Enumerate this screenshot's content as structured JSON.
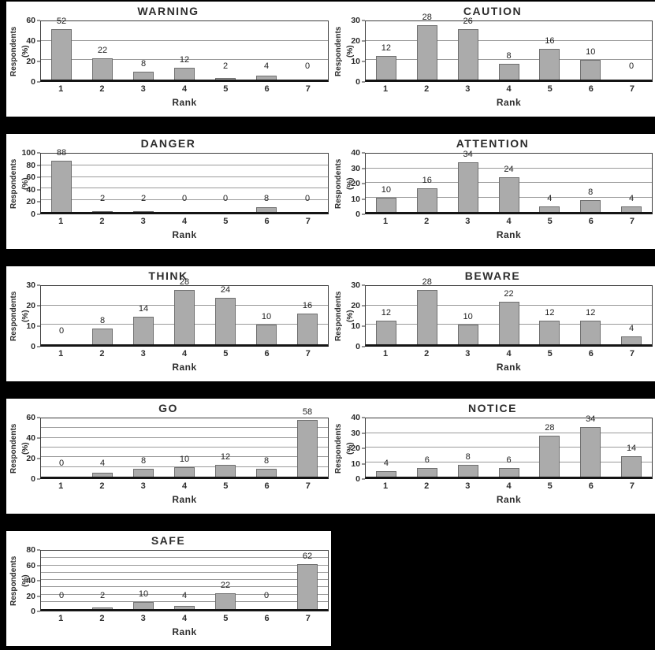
{
  "figure": {
    "description": "Nine bar charts of respondent rankings for signal words",
    "background_color": "#000000",
    "card_color": "#ffffff",
    "bar_color": "#ababab",
    "bar_border_color": "#6f6f6f",
    "gridline_color": "#9a9a9a"
  },
  "shared": {
    "ylabel": "Respondents (%)",
    "xlabel": "Rank",
    "categories": [
      "1",
      "2",
      "3",
      "4",
      "5",
      "6",
      "7"
    ]
  },
  "chart_data": [
    {
      "type": "bar",
      "title": "WARNING",
      "values": [
        52,
        22,
        8,
        12,
        2,
        4,
        0
      ],
      "ylim": [
        0,
        60
      ],
      "yticks": [
        0,
        20,
        40,
        60
      ],
      "grid_step": 20
    },
    {
      "type": "bar",
      "title": "CAUTION",
      "values": [
        12,
        28,
        26,
        8,
        16,
        10,
        0
      ],
      "ylim": [
        0,
        30
      ],
      "yticks": [
        0,
        10,
        20,
        30
      ],
      "grid_step": 10
    },
    {
      "type": "bar",
      "title": "DANGER",
      "values": [
        88,
        2,
        2,
        0,
        0,
        8,
        0
      ],
      "ylim": [
        0,
        100
      ],
      "yticks": [
        0,
        20,
        40,
        60,
        80,
        100
      ],
      "grid_step": 20
    },
    {
      "type": "bar",
      "title": "ATTENTION",
      "values": [
        10,
        16,
        34,
        24,
        4,
        8,
        4
      ],
      "ylim": [
        0,
        40
      ],
      "yticks": [
        0,
        10,
        20,
        30,
        40
      ],
      "grid_step": 10
    },
    {
      "type": "bar",
      "title": "THINK",
      "values": [
        0,
        8,
        14,
        28,
        24,
        10,
        16
      ],
      "ylim": [
        0,
        30
      ],
      "yticks": [
        0,
        10,
        20,
        30
      ],
      "grid_step": 10
    },
    {
      "type": "bar",
      "title": "BEWARE",
      "values": [
        12,
        28,
        10,
        22,
        12,
        12,
        4
      ],
      "ylim": [
        0,
        30
      ],
      "yticks": [
        0,
        10,
        20,
        30
      ],
      "grid_step": 10
    },
    {
      "type": "bar",
      "title": "GO",
      "values": [
        0,
        4,
        8,
        10,
        12,
        8,
        58
      ],
      "ylim": [
        0,
        60
      ],
      "yticks": [
        0,
        20,
        40,
        60
      ],
      "grid_step": 10
    },
    {
      "type": "bar",
      "title": "NOTICE",
      "values": [
        4,
        6,
        8,
        6,
        28,
        34,
        14
      ],
      "ylim": [
        0,
        40
      ],
      "yticks": [
        0,
        10,
        20,
        30,
        40
      ],
      "grid_step": 10
    },
    {
      "type": "bar",
      "title": "SAFE",
      "values": [
        0,
        2,
        10,
        4,
        22,
        0,
        62
      ],
      "ylim": [
        0,
        80
      ],
      "yticks": [
        0,
        20,
        40,
        60,
        80
      ],
      "grid_step": 10
    }
  ]
}
